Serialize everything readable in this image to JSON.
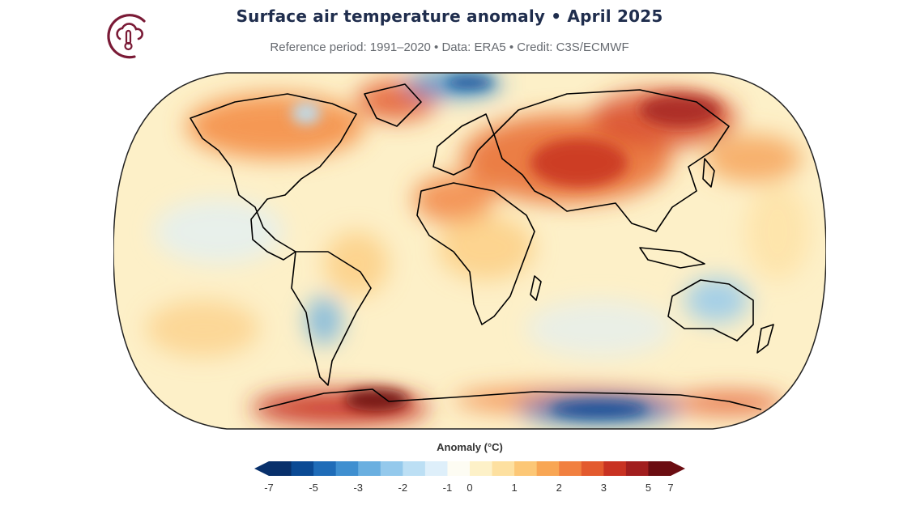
{
  "header": {
    "title": "Surface air temperature anomaly • April 2025",
    "subtitle": "Reference period: 1991–2020 • Data: ERA5 • Credit: C3S/ECMWF"
  },
  "logo": {
    "icon": "cloud-thermometer-icon",
    "color": "#7a1a36"
  },
  "map": {
    "projection": "robinson",
    "ocean_base_color": "#fdf0c8",
    "land_outline_color": "#000000"
  },
  "colorbar": {
    "title": "Anomaly (°C)",
    "ticks": [
      "-7",
      "-5",
      "-3",
      "-2",
      "-1",
      "0",
      "1",
      "2",
      "3",
      "5",
      "7"
    ],
    "colors": [
      "#08306b",
      "#0b4a94",
      "#1f6cb8",
      "#3f8fd0",
      "#6aafe0",
      "#94c9ec",
      "#bcdff4",
      "#deeffa",
      "#fdfcf3",
      "#fdf1c8",
      "#fde0a0",
      "#fcc776",
      "#f8a654",
      "#f18040",
      "#e35a2e",
      "#c83222",
      "#a11e1e",
      "#6b0d12"
    ]
  }
}
